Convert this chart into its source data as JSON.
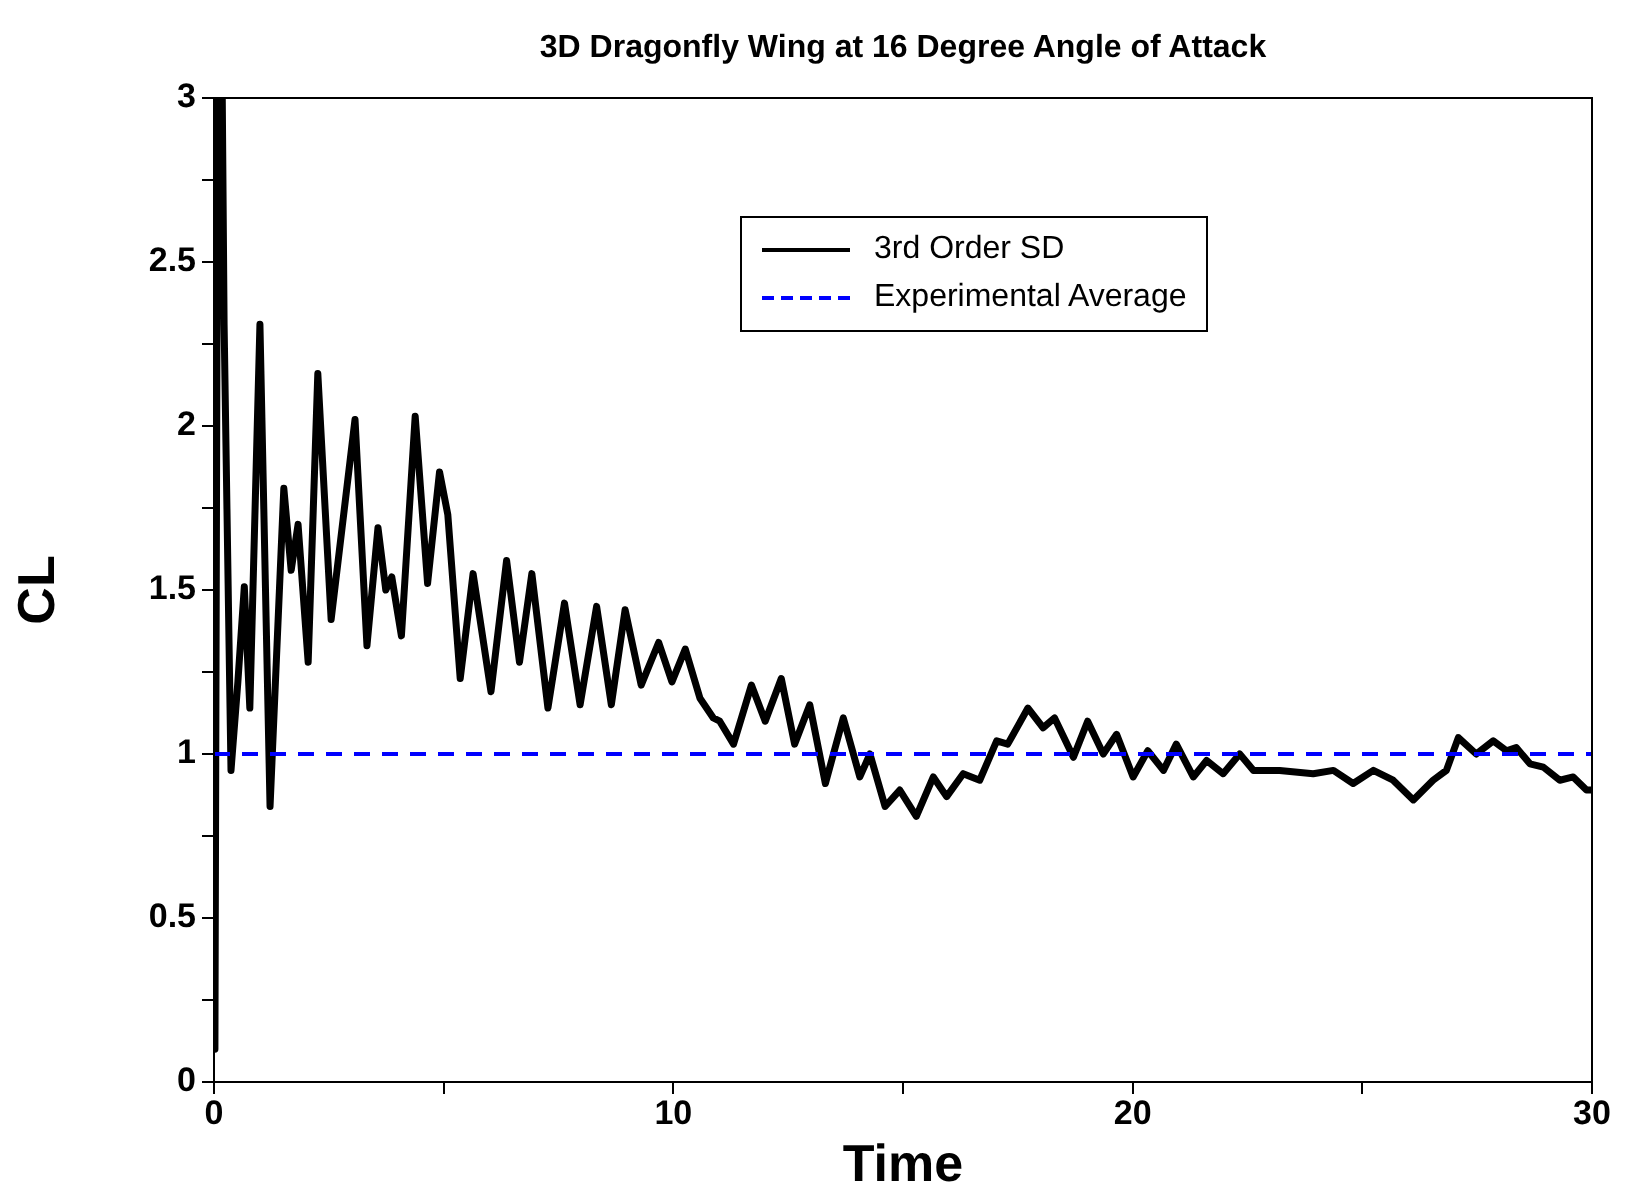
{
  "chart_data": {
    "type": "line",
    "title": "3D Dragonfly Wing at 16 Degree Angle of Attack",
    "xlabel": "Time",
    "ylabel": "CL",
    "xlim": [
      0,
      30
    ],
    "xticks": [
      0,
      {
        "value": 5,
        "label": null
      },
      10,
      {
        "value": 15,
        "label": null
      },
      20,
      {
        "value": 25,
        "label": null
      },
      30
    ],
    "ylim": [
      0,
      3
    ],
    "yticks": [
      0,
      {
        "value": 0.25,
        "label": null
      },
      0.5,
      {
        "value": 0.75,
        "label": null
      },
      1,
      {
        "value": 1.25,
        "label": null
      },
      1.5,
      {
        "value": 1.75,
        "label": null
      },
      2,
      {
        "value": 2.25,
        "label": null
      },
      2.5,
      {
        "value": 2.75,
        "label": null
      },
      3
    ],
    "grid": false,
    "legend": "top right",
    "marker": "none",
    "line_style": "solid",
    "ref_lines": [
      {
        "axis": "y",
        "value": 1,
        "label": "Experimental Average",
        "color": "#0000ff",
        "line_style": "dashed"
      }
    ],
    "series": [
      {
        "name": "3rd Order SD",
        "color": "#000000",
        "x": [
          0.02,
          0.08,
          0.18,
          0.22,
          0.37,
          0.52,
          0.66,
          0.78,
          1.0,
          1.22,
          1.52,
          1.68,
          1.83,
          2.05,
          2.26,
          2.55,
          3.07,
          3.33,
          3.57,
          3.74,
          3.87,
          4.08,
          4.38,
          4.65,
          4.91,
          5.09,
          5.36,
          5.64,
          6.03,
          6.37,
          6.65,
          6.92,
          7.27,
          7.63,
          7.97,
          8.33,
          8.65,
          8.95,
          9.3,
          9.68,
          9.97,
          10.26,
          10.58,
          10.87,
          11.01,
          11.31,
          11.7,
          12.0,
          12.35,
          12.64,
          12.97,
          13.31,
          13.7,
          14.06,
          14.28,
          14.61,
          14.93,
          15.29,
          15.66,
          15.95,
          16.31,
          16.67,
          17.04,
          17.28,
          17.72,
          18.05,
          18.3,
          18.71,
          19.02,
          19.36,
          19.65,
          20.01,
          20.33,
          20.67,
          20.95,
          21.32,
          21.61,
          21.97,
          22.33,
          22.63,
          23.2,
          23.93,
          24.37,
          24.8,
          25.24,
          25.67,
          26.11,
          26.54,
          26.83,
          27.09,
          27.48,
          27.85,
          28.14,
          28.35,
          28.65,
          28.94,
          29.3,
          29.59,
          29.88,
          30
        ],
        "values": [
          0.1,
          3.0,
          3.0,
          2.31,
          0.95,
          1.22,
          1.51,
          1.14,
          2.31,
          0.84,
          1.81,
          1.56,
          1.7,
          1.28,
          2.16,
          1.41,
          2.02,
          1.33,
          1.69,
          1.5,
          1.54,
          1.36,
          2.03,
          1.52,
          1.86,
          1.73,
          1.23,
          1.55,
          1.19,
          1.59,
          1.28,
          1.55,
          1.14,
          1.46,
          1.15,
          1.45,
          1.15,
          1.44,
          1.21,
          1.34,
          1.22,
          1.32,
          1.17,
          1.11,
          1.1,
          1.03,
          1.21,
          1.1,
          1.23,
          1.03,
          1.15,
          0.91,
          1.11,
          0.93,
          1.0,
          0.84,
          0.89,
          0.81,
          0.93,
          0.87,
          0.94,
          0.92,
          1.04,
          1.03,
          1.14,
          1.08,
          1.11,
          0.99,
          1.1,
          1.0,
          1.06,
          0.93,
          1.01,
          0.95,
          1.03,
          0.93,
          0.98,
          0.94,
          1.0,
          0.95,
          0.95,
          0.94,
          0.95,
          0.91,
          0.95,
          0.92,
          0.86,
          0.92,
          0.95,
          1.05,
          1.0,
          1.04,
          1.01,
          1.02,
          0.97,
          0.96,
          0.92,
          0.93,
          0.89,
          0.89
        ]
      }
    ]
  }
}
